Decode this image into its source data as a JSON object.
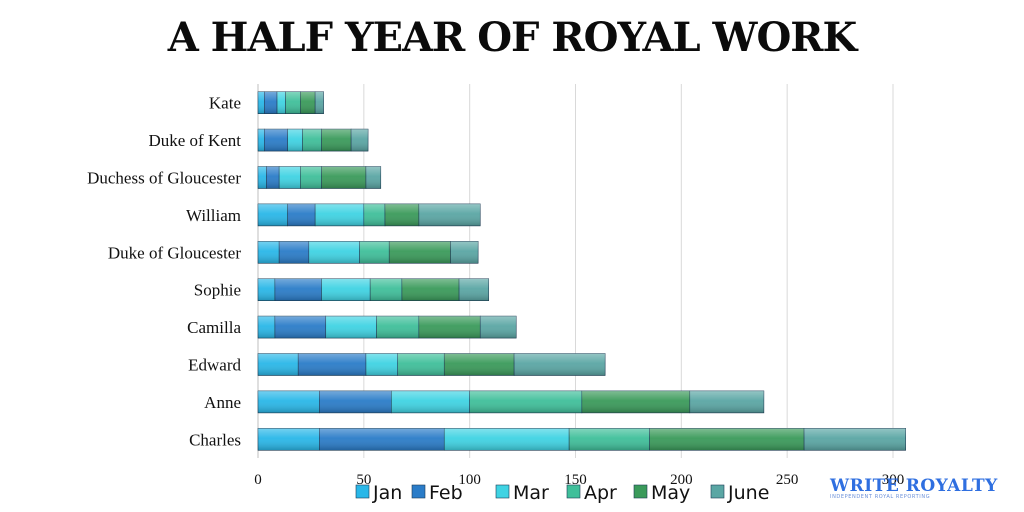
{
  "title": "A HALF YEAR OF ROYAL WORK",
  "watermark": {
    "text": "WRITE ROYALTY",
    "subtitle": "INDEPENDENT ROYAL REPORTING"
  },
  "chart_data": {
    "type": "bar",
    "orientation": "horizontal",
    "stacked": true,
    "title": "A HALF YEAR OF ROYAL WORK",
    "categories": [
      "Kate",
      "Duke of Kent",
      "Duchess of Gloucester",
      "William",
      "Duke of Gloucester",
      "Sophie",
      "Camilla",
      "Edward",
      "Anne",
      "Charles"
    ],
    "series": [
      {
        "name": "Jan",
        "color": "#29b7e8",
        "values": [
          3,
          3,
          4,
          14,
          10,
          8,
          8,
          19,
          29,
          29
        ]
      },
      {
        "name": "Feb",
        "color": "#2a7cc8",
        "values": [
          6,
          11,
          6,
          13,
          14,
          22,
          24,
          32,
          34,
          59
        ]
      },
      {
        "name": "Mar",
        "color": "#3fd3e3",
        "values": [
          4,
          7,
          10,
          23,
          24,
          23,
          24,
          15,
          37,
          59
        ]
      },
      {
        "name": "Apr",
        "color": "#3fbf9a",
        "values": [
          7,
          9,
          10,
          10,
          14,
          15,
          20,
          22,
          53,
          38
        ]
      },
      {
        "name": "May",
        "color": "#3a9a5a",
        "values": [
          7,
          14,
          21,
          16,
          29,
          27,
          29,
          33,
          51,
          73
        ]
      },
      {
        "name": "June",
        "color": "#5aa6a4",
        "values": [
          4,
          8,
          7,
          29,
          13,
          14,
          17,
          43,
          35,
          48
        ]
      }
    ],
    "xlim": [
      0,
      300
    ],
    "xticks": [
      "0",
      "50",
      "100",
      "150",
      "200",
      "250",
      "300"
    ],
    "xtick_values": [
      0,
      50,
      100,
      150,
      200,
      250,
      300
    ],
    "grid": true,
    "legend": "bottom"
  }
}
